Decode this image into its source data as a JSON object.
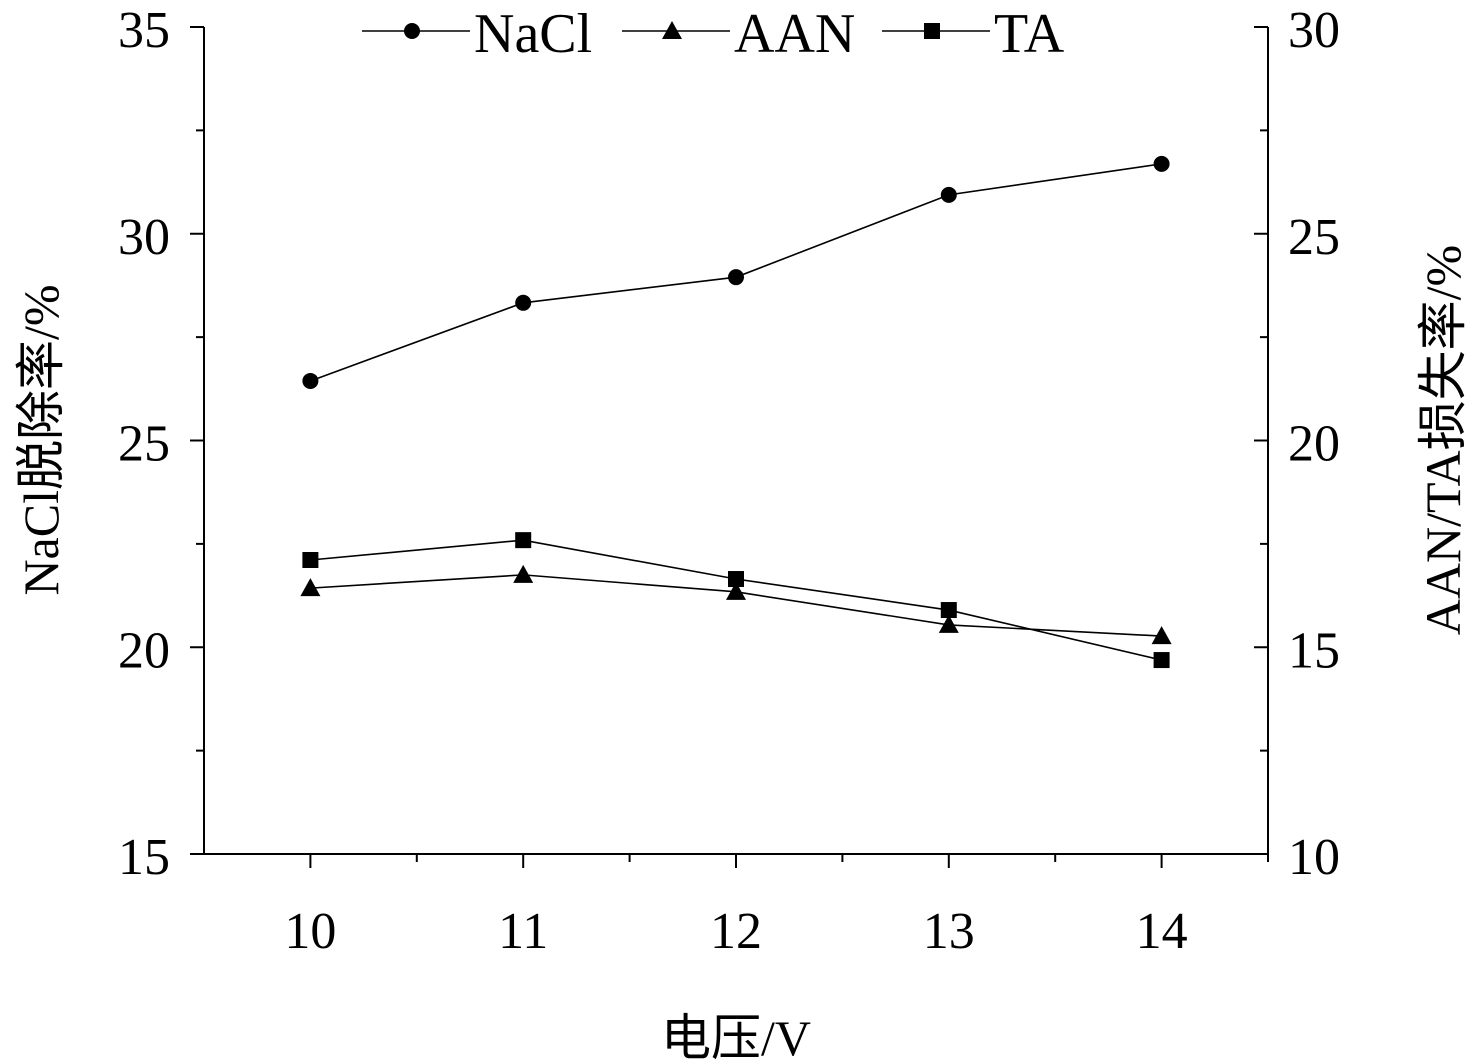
{
  "chart_data": {
    "type": "line",
    "xlabel": "电压/V",
    "ylabel_left": "NaCl脱除率/%",
    "ylabel_right": "AAN/TA损失率/%",
    "xlim": [
      9.5,
      14.5
    ],
    "ylim_left": [
      15,
      35
    ],
    "ylim_right": [
      10,
      30
    ],
    "x_ticks": [
      10,
      11,
      12,
      13,
      14
    ],
    "y_ticks_left": [
      15,
      20,
      25,
      30,
      35
    ],
    "y_ticks_right": [
      10,
      15,
      20,
      25,
      30
    ],
    "legend_position": "top-center",
    "grid": false,
    "x": [
      10,
      11,
      12,
      13,
      14
    ],
    "series": [
      {
        "name": "NaCl",
        "axis": "left",
        "marker": "circle",
        "values": [
          26.44,
          28.33,
          28.95,
          30.94,
          31.69
        ]
      },
      {
        "name": "AAN",
        "axis": "right",
        "marker": "triangle",
        "values": [
          16.43,
          16.75,
          16.34,
          15.54,
          15.27
        ]
      },
      {
        "name": "TA",
        "axis": "right",
        "marker": "square",
        "values": [
          17.11,
          17.59,
          16.65,
          15.9,
          14.69
        ]
      }
    ]
  }
}
